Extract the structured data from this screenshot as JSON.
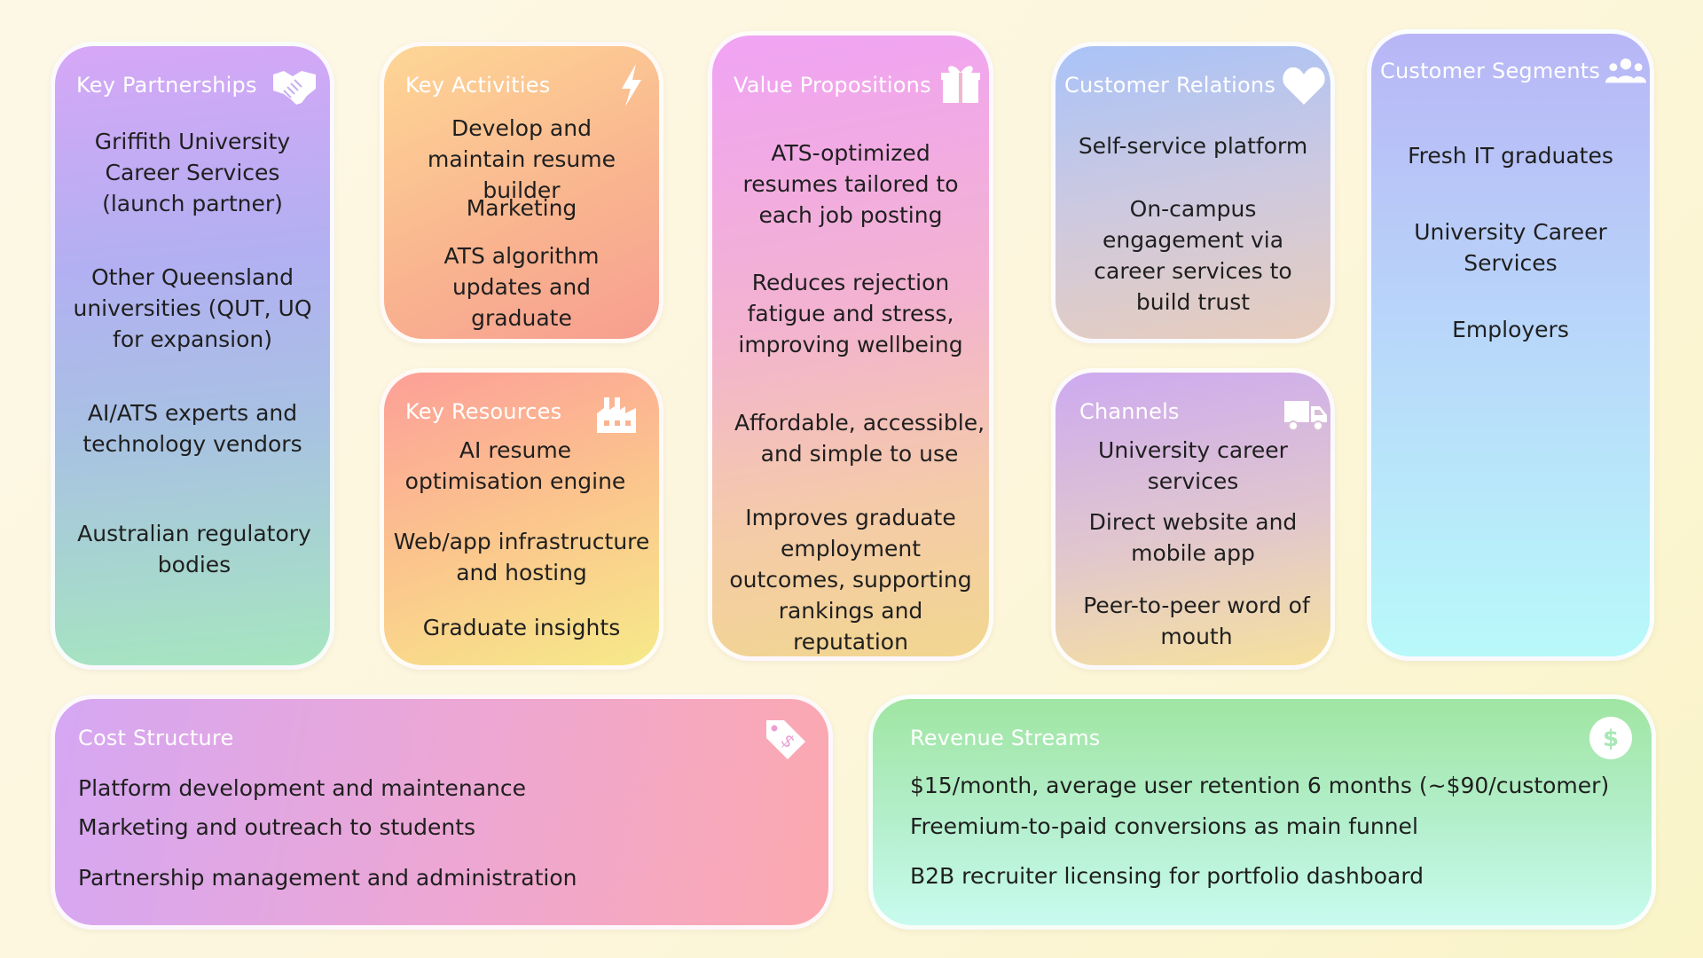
{
  "canvas": {
    "key_partnerships": {
      "title": "Key Partnerships",
      "icon": "handshake-icon",
      "items": [
        "Griffith University Career Services (launch partner)",
        "Other Queensland universities (QUT, UQ for expansion)",
        "AI/ATS experts and technology vendors",
        "Australian regulatory bodies"
      ]
    },
    "key_activities": {
      "title": "Key Activities",
      "icon": "lightning-icon",
      "items": [
        "Develop and maintain resume builder",
        "Marketing",
        "ATS algorithm updates and graduate employability trends"
      ]
    },
    "key_resources": {
      "title": "Key Resources",
      "icon": "factory-icon",
      "items": [
        "AI resume optimisation engine",
        "Web/app infrastructure and hosting",
        "Graduate insights"
      ]
    },
    "value_propositions": {
      "title": "Value Propositions",
      "icon": "gift-icon",
      "items": [
        "ATS-optimized resumes tailored to each job posting",
        "Reduces rejection fatigue and stress, improving wellbeing",
        "Affordable, accessible, and simple to use",
        "Improves graduate employment outcomes, supporting rankings and reputation"
      ]
    },
    "customer_relations": {
      "title": "Customer Relations",
      "icon": "heart-icon",
      "items": [
        "Self-service platform",
        "On-campus engagement via career services to build trust"
      ]
    },
    "channels": {
      "title": "Channels",
      "icon": "truck-icon",
      "items": [
        "University career services",
        "Direct website and mobile app",
        "Peer-to-peer word of mouth"
      ]
    },
    "customer_segments": {
      "title": "Customer Segments",
      "icon": "people-group-icon",
      "items": [
        "Fresh IT graduates",
        "University Career Services",
        "Employers"
      ]
    },
    "cost_structure": {
      "title": "Cost Structure",
      "icon": "price-tag-icon",
      "items": [
        "Platform development and maintenance",
        "Marketing and outreach to students",
        "Partnership management and administration"
      ]
    },
    "revenue_streams": {
      "title": "Revenue Streams",
      "icon": "dollar-coin-icon",
      "items": [
        "$15/month, average user retention 6 months (~$90/customer)",
        "Freemium-to-paid conversions as main funnel",
        "B2B recruiter licensing for portfolio dashboard"
      ]
    }
  }
}
